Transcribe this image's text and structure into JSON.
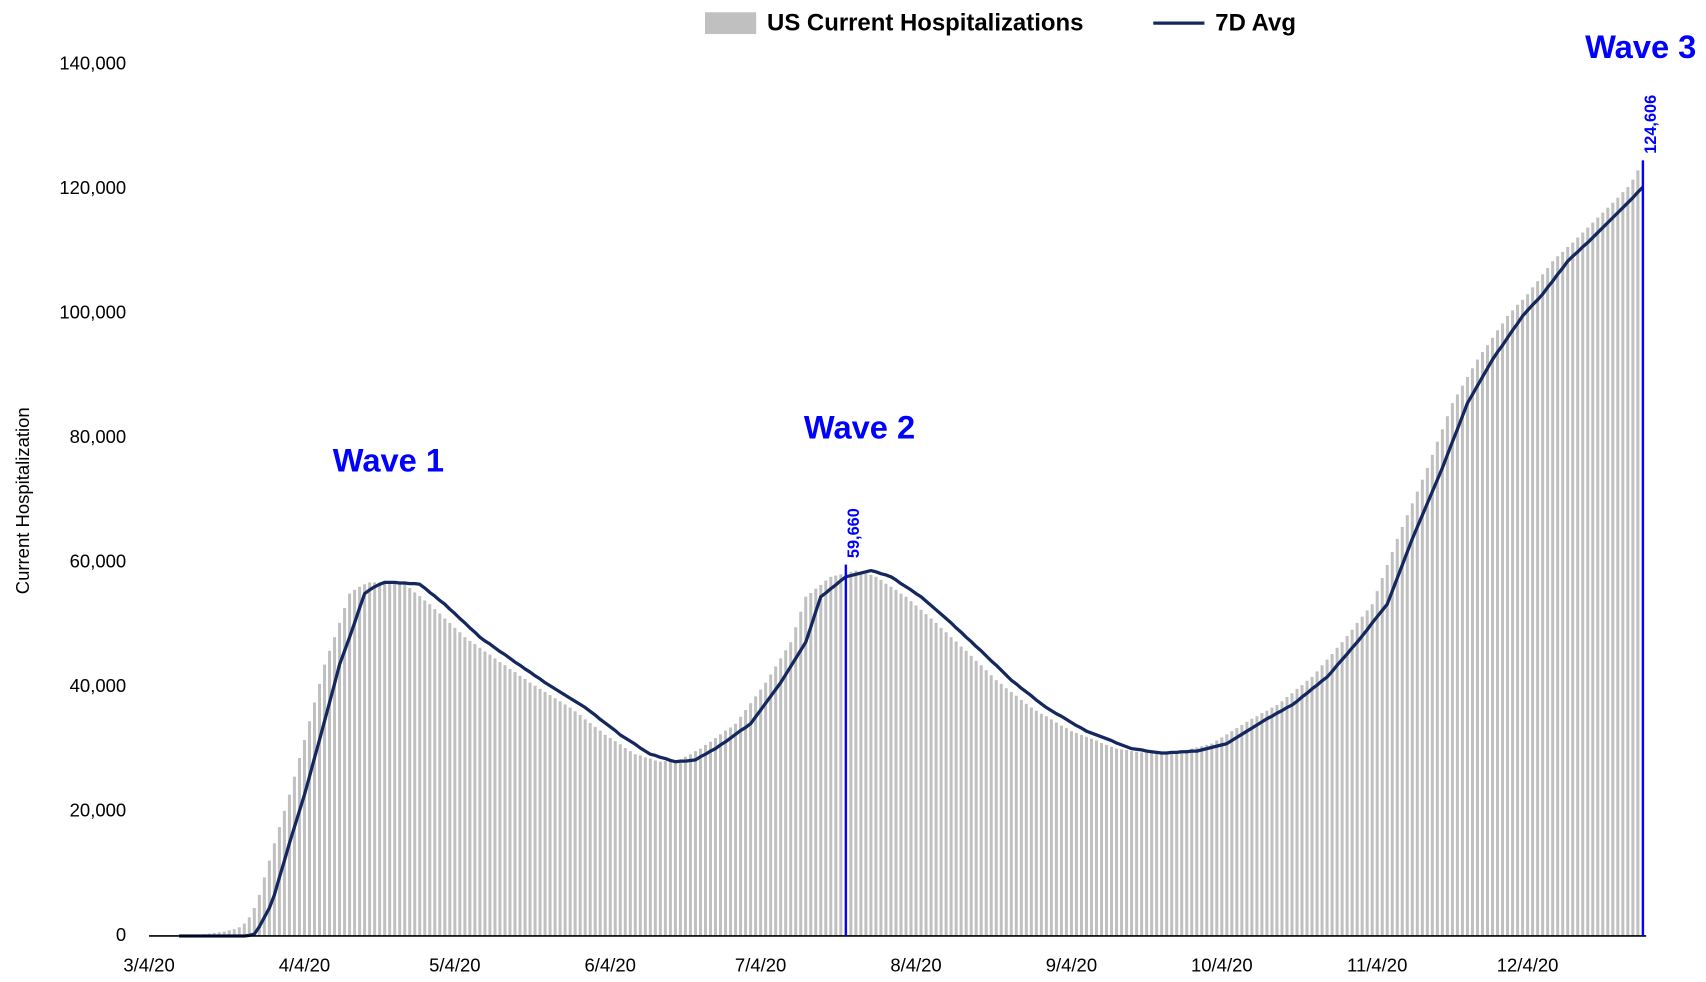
{
  "chart_data": {
    "type": "bar",
    "ylabel": "Current Hospitalization",
    "ylim": [
      0,
      140000
    ],
    "yticks": [
      0,
      {
        "value": 20000,
        "label": "20,000"
      },
      {
        "value": 40000,
        "label": "40,000"
      },
      {
        "value": 60000,
        "label": "60,000"
      },
      {
        "value": 80000,
        "label": "80,000"
      },
      {
        "value": 100000,
        "label": "100,000"
      },
      {
        "value": 120000,
        "label": "120,000"
      },
      {
        "value": 140000,
        "label": "140,000"
      }
    ],
    "grid": false,
    "legend": "top",
    "annotations": [
      "Wave 1",
      "Wave 2",
      "Wave 3"
    ],
    "highlights": [
      {
        "index": 139,
        "label": "59,660"
      },
      {
        "index": 298,
        "label": "124,606"
      }
    ],
    "highlight_color": "#0000ff",
    "categories": [
      "3/4/20",
      null,
      null,
      null,
      null,
      null,
      null,
      null,
      null,
      null,
      null,
      null,
      null,
      null,
      null,
      null,
      null,
      null,
      null,
      null,
      null,
      null,
      null,
      null,
      null,
      null,
      null,
      null,
      null,
      null,
      null,
      "4/4/20",
      null,
      null,
      null,
      null,
      null,
      null,
      null,
      null,
      null,
      null,
      null,
      null,
      null,
      null,
      null,
      null,
      null,
      null,
      null,
      null,
      null,
      null,
      null,
      null,
      null,
      null,
      null,
      null,
      null,
      "5/4/20",
      null,
      null,
      null,
      null,
      null,
      null,
      null,
      null,
      null,
      null,
      null,
      null,
      null,
      null,
      null,
      null,
      null,
      null,
      null,
      null,
      null,
      null,
      null,
      null,
      null,
      null,
      null,
      null,
      null,
      null,
      "6/4/20",
      null,
      null,
      null,
      null,
      null,
      null,
      null,
      null,
      null,
      null,
      null,
      null,
      null,
      null,
      null,
      null,
      null,
      null,
      null,
      null,
      null,
      null,
      null,
      null,
      null,
      null,
      null,
      null,
      null,
      "7/4/20",
      null,
      null,
      null,
      null,
      null,
      null,
      null,
      null,
      null,
      null,
      null,
      null,
      null,
      null,
      null,
      null,
      null,
      null,
      null,
      null,
      null,
      null,
      null,
      null,
      null,
      null,
      null,
      null,
      null,
      null,
      "8/4/20",
      null,
      null,
      null,
      null,
      null,
      null,
      null,
      null,
      null,
      null,
      null,
      null,
      null,
      null,
      null,
      null,
      null,
      null,
      null,
      null,
      null,
      null,
      null,
      null,
      null,
      null,
      null,
      null,
      null,
      null,
      "9/4/20",
      null,
      null,
      null,
      null,
      null,
      null,
      null,
      null,
      null,
      null,
      null,
      null,
      null,
      null,
      null,
      null,
      null,
      null,
      null,
      null,
      null,
      null,
      null,
      null,
      null,
      null,
      null,
      null,
      null,
      "10/4/20",
      null,
      null,
      null,
      null,
      null,
      null,
      null,
      null,
      null,
      null,
      null,
      null,
      null,
      null,
      null,
      null,
      null,
      null,
      null,
      null,
      null,
      null,
      null,
      null,
      null,
      null,
      null,
      null,
      null,
      null,
      "11/4/20",
      null,
      null,
      null,
      null,
      null,
      null,
      null,
      null,
      null,
      null,
      null,
      null,
      null,
      null,
      null,
      null,
      null,
      null,
      null,
      null,
      null,
      null,
      null,
      null,
      null,
      null,
      null,
      null,
      null,
      "12/4/20",
      null,
      null,
      null,
      null,
      null,
      null,
      null,
      null,
      null,
      null,
      null,
      null,
      null,
      null,
      null,
      null,
      null,
      null,
      null,
      null,
      null,
      null,
      null
    ],
    "series": [
      {
        "name": "US Current Hospitalizations",
        "type": "bar",
        "color": "#c0c0c0",
        "values": [
          10,
          10,
          20,
          30,
          40,
          60,
          80,
          100,
          150,
          200,
          250,
          300,
          400,
          500,
          600,
          700,
          900,
          1100,
          1400,
          2000,
          3000,
          4500,
          6600,
          9400,
          12100,
          14900,
          17500,
          20100,
          22700,
          25600,
          28600,
          31500,
          34500,
          37500,
          40500,
          43600,
          45800,
          48000,
          50300,
          52700,
          55000,
          55600,
          56100,
          56500,
          56800,
          56800,
          56800,
          56700,
          56700,
          56600,
          56600,
          56500,
          55900,
          55200,
          54600,
          53900,
          53300,
          52500,
          51800,
          51000,
          50300,
          49500,
          48800,
          48000,
          47400,
          46900,
          46300,
          45700,
          45200,
          44600,
          44000,
          43500,
          42900,
          42400,
          41800,
          41300,
          40700,
          40200,
          39700,
          39200,
          38700,
          38200,
          37700,
          37200,
          36700,
          36100,
          35500,
          34800,
          34200,
          33600,
          33000,
          32300,
          31800,
          31300,
          30800,
          30200,
          29700,
          29200,
          29000,
          28700,
          28500,
          28200,
          28000,
          28100,
          28100,
          28200,
          28300,
          28800,
          29200,
          29700,
          30100,
          30700,
          31200,
          31800,
          32400,
          33000,
          33500,
          34100,
          35200,
          36300,
          37400,
          38500,
          39600,
          40700,
          42000,
          43300,
          44600,
          45900,
          47200,
          49600,
          52100,
          54500,
          55100,
          55800,
          56400,
          57100,
          57700,
          57900,
          58100,
          59660,
          58500,
          58700,
          58500,
          58200,
          58000,
          57700,
          57200,
          56600,
          56100,
          55600,
          55000,
          54500,
          53800,
          53100,
          52400,
          51700,
          51000,
          50300,
          49500,
          48800,
          48000,
          47300,
          46500,
          45800,
          45000,
          44200,
          43500,
          42700,
          41900,
          41100,
          40500,
          39800,
          39200,
          38600,
          37900,
          37300,
          36700,
          36200,
          35700,
          35300,
          34800,
          34300,
          33800,
          33400,
          32900,
          32600,
          32300,
          32000,
          31700,
          31400,
          31000,
          30700,
          30400,
          30100,
          30000,
          29900,
          29700,
          29600,
          29500,
          29400,
          29400,
          29500,
          29500,
          29600,
          29600,
          29700,
          29700,
          29900,
          30100,
          30300,
          30500,
          30700,
          30900,
          31400,
          31900,
          32400,
          32900,
          33400,
          33900,
          34400,
          34900,
          35300,
          35800,
          36200,
          36700,
          37100,
          37700,
          38400,
          39000,
          39700,
          40300,
          41000,
          41600,
          42500,
          43500,
          44400,
          45300,
          46300,
          47200,
          48200,
          49200,
          50300,
          51300,
          52300,
          53300,
          55400,
          57500,
          59600,
          61700,
          63800,
          65700,
          67600,
          69500,
          71400,
          73300,
          75200,
          77300,
          79400,
          81400,
          83500,
          85600,
          87000,
          88400,
          89800,
          91200,
          92600,
          93800,
          94900,
          96100,
          97300,
          98400,
          99600,
          100500,
          101400,
          102200,
          103100,
          104200,
          105200,
          106300,
          107300,
          108400,
          109200,
          109900,
          110700,
          111400,
          112200,
          113000,
          113800,
          114600,
          115400,
          116200,
          117000,
          117800,
          118600,
          119500,
          120300,
          121500,
          123000,
          124606
        ]
      },
      {
        "name": "7D Avg",
        "type": "line",
        "color": "#14285f",
        "values": [
          null,
          null,
          null,
          null,
          null,
          null,
          0,
          0,
          0,
          0,
          0,
          0,
          0,
          0,
          0,
          0,
          0,
          0,
          0,
          0,
          100,
          300,
          1500,
          3000,
          4500,
          6600,
          9400,
          12100,
          14900,
          17500,
          20100,
          22700,
          25600,
          28600,
          31500,
          34500,
          37500,
          40500,
          43600,
          45800,
          48000,
          50300,
          52700,
          55000,
          55600,
          56100,
          56500,
          56800,
          56800,
          56800,
          56700,
          56700,
          56600,
          56600,
          56500,
          55900,
          55200,
          54600,
          53900,
          53300,
          52500,
          51800,
          51000,
          50300,
          49500,
          48800,
          48000,
          47400,
          46900,
          46300,
          45700,
          45200,
          44600,
          44000,
          43500,
          42900,
          42400,
          41800,
          41300,
          40700,
          40200,
          39700,
          39200,
          38700,
          38200,
          37700,
          37200,
          36700,
          36100,
          35500,
          34800,
          34200,
          33600,
          33000,
          32300,
          31800,
          31300,
          30800,
          30200,
          29700,
          29200,
          29000,
          28700,
          28500,
          28200,
          28000,
          28100,
          28100,
          28200,
          28300,
          28800,
          29200,
          29700,
          30100,
          30700,
          31200,
          31800,
          32400,
          33000,
          33500,
          34100,
          35200,
          36300,
          37400,
          38500,
          39600,
          40700,
          42000,
          43300,
          44600,
          45900,
          47200,
          49600,
          52100,
          54500,
          55100,
          55800,
          56400,
          57100,
          57700,
          57900,
          58100,
          58300,
          58500,
          58700,
          58500,
          58200,
          58000,
          57700,
          57200,
          56600,
          56100,
          55600,
          55000,
          54500,
          53800,
          53100,
          52400,
          51700,
          51000,
          50300,
          49500,
          48800,
          48000,
          47300,
          46500,
          45800,
          45000,
          44200,
          43500,
          42700,
          41900,
          41100,
          40500,
          39800,
          39200,
          38600,
          37900,
          37300,
          36700,
          36200,
          35700,
          35300,
          34800,
          34300,
          33800,
          33400,
          32900,
          32600,
          32300,
          32000,
          31700,
          31400,
          31000,
          30700,
          30400,
          30100,
          30000,
          29900,
          29700,
          29600,
          29500,
          29400,
          29400,
          29500,
          29500,
          29600,
          29600,
          29700,
          29700,
          29900,
          30100,
          30300,
          30500,
          30700,
          30900,
          31400,
          31900,
          32400,
          32900,
          33400,
          33900,
          34400,
          34900,
          35300,
          35800,
          36200,
          36700,
          37100,
          37700,
          38400,
          39000,
          39700,
          40300,
          41000,
          41600,
          42500,
          43500,
          44400,
          45300,
          46300,
          47200,
          48200,
          49200,
          50300,
          51300,
          52300,
          53300,
          55400,
          57500,
          59600,
          61700,
          63800,
          65700,
          67600,
          69500,
          71400,
          73300,
          75200,
          77300,
          79400,
          81400,
          83500,
          85600,
          87000,
          88400,
          89800,
          91200,
          92600,
          93800,
          94900,
          96100,
          97300,
          98400,
          99600,
          100500,
          101400,
          102200,
          103100,
          104200,
          105200,
          106300,
          107300,
          108400,
          109200,
          109900,
          110700,
          111400,
          112200,
          113000,
          113800,
          114600,
          115400,
          116200,
          117000,
          117800,
          118600,
          119500,
          120300
        ]
      }
    ]
  }
}
